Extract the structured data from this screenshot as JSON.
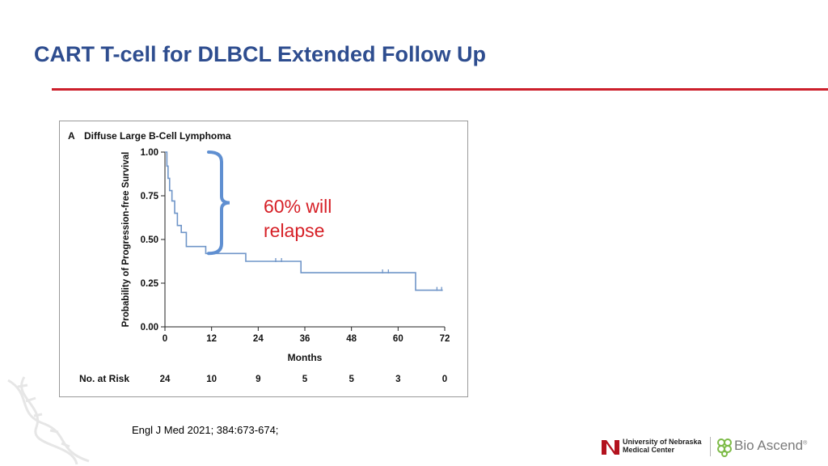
{
  "slide": {
    "title": "CART T-cell for DLBCL Extended Follow Up",
    "annotation_line1": "60% will",
    "annotation_line2": "relapse",
    "citation": "Engl J Med 2021; 384:673-674;"
  },
  "logos": {
    "unmc_line1": "University of Nebraska",
    "unmc_line2": "Medical Center",
    "bio_name": "Bio Ascend",
    "bio_mark": "®"
  },
  "colors": {
    "title": "#2e4d8f",
    "rule": "#cc1f2b",
    "annotation": "#d61f26",
    "curve": "#6f95c8",
    "bracket": "#5f8fd1"
  },
  "chart_data": {
    "type": "line",
    "panel_label": "A",
    "title": "Diffuse Large B-Cell Lymphoma",
    "xlabel": "Months",
    "ylabel": "Probability of Progression-free Survival",
    "xlim": [
      0,
      72
    ],
    "ylim": [
      0,
      1
    ],
    "x_ticks": [
      "0",
      "12",
      "24",
      "36",
      "48",
      "60",
      "72"
    ],
    "y_ticks": [
      "0.00",
      "0.25",
      "0.50",
      "0.75",
      "1.00"
    ],
    "series": [
      {
        "step": true,
        "points": [
          [
            0,
            1.0
          ],
          [
            0.5,
            0.92
          ],
          [
            0.8,
            0.85
          ],
          [
            1.2,
            0.78
          ],
          [
            1.8,
            0.72
          ],
          [
            2.5,
            0.65
          ],
          [
            3.2,
            0.58
          ],
          [
            4.2,
            0.54
          ],
          [
            5.5,
            0.46
          ],
          [
            10.5,
            0.42
          ],
          [
            20.8,
            0.375
          ],
          [
            35,
            0.31
          ],
          [
            64.5,
            0.21
          ],
          [
            71.5,
            0.21
          ]
        ],
        "censored": [
          [
            28.5,
            0.375
          ],
          [
            30,
            0.375
          ],
          [
            56,
            0.31
          ],
          [
            57.5,
            0.31
          ],
          [
            70,
            0.21
          ],
          [
            71.2,
            0.21
          ]
        ]
      }
    ],
    "at_risk": {
      "label": "No. at Risk",
      "values": [
        "24",
        "10",
        "9",
        "5",
        "5",
        "3",
        "0"
      ]
    },
    "bracket": {
      "y_top": 1.0,
      "y_bottom": 0.42
    }
  }
}
